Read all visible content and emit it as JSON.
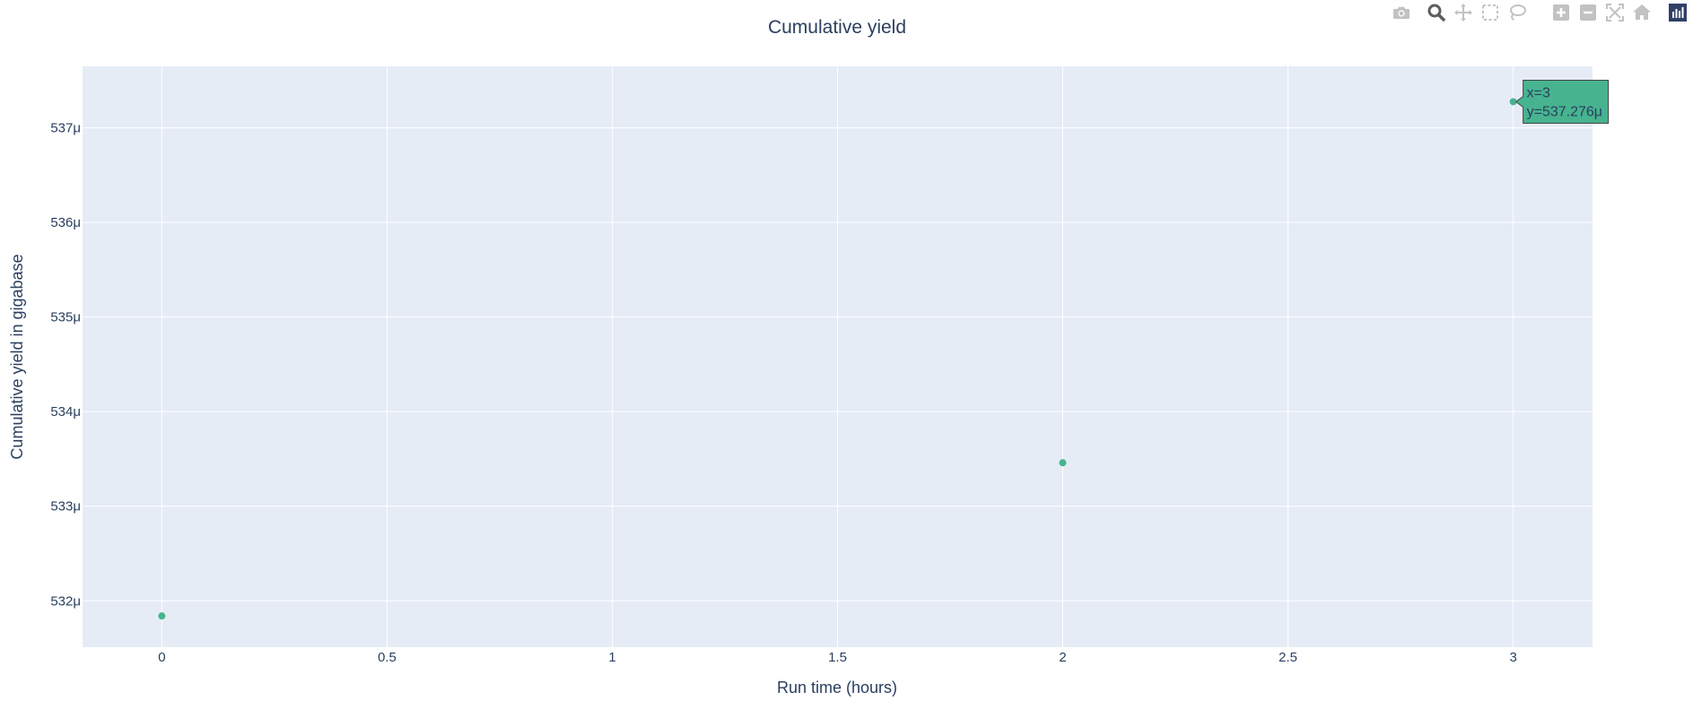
{
  "chart_data": {
    "type": "scatter",
    "title": "Cumulative yield",
    "xlabel": "Run time (hours)",
    "ylabel": "Cumulative yield in gigabase",
    "xlim": [
      -0.176,
      3.176
    ],
    "ylim": [
      531.51,
      537.65
    ],
    "x_ticks": [
      0,
      0.5,
      1,
      1.5,
      2,
      2.5,
      3
    ],
    "x_tick_labels": [
      "0",
      "0.5",
      "1",
      "1.5",
      "2",
      "2.5",
      "3"
    ],
    "y_ticks": [
      532,
      533,
      534,
      535,
      536,
      537
    ],
    "y_tick_labels": [
      "532μ",
      "533μ",
      "534μ",
      "535μ",
      "536μ",
      "537μ"
    ],
    "y_unit_note": "values in micro (μ) gigabase",
    "x": [
      0,
      2,
      3
    ],
    "y": [
      531.84,
      533.46,
      537.276
    ],
    "marker_color": "#47b38f",
    "plot_bgcolor": "#e5ecf6",
    "grid": true,
    "hover": {
      "line1": "x=3",
      "line2": "y=537.276μ",
      "point_index": 2
    }
  },
  "modebar": {
    "buttons": [
      "camera-icon",
      "zoom-icon",
      "pan-icon",
      "box-select-icon",
      "lasso-select-icon",
      "zoom-in-icon",
      "zoom-out-icon",
      "autoscale-icon",
      "reset-axes-icon",
      "plotly-logo-icon"
    ]
  }
}
